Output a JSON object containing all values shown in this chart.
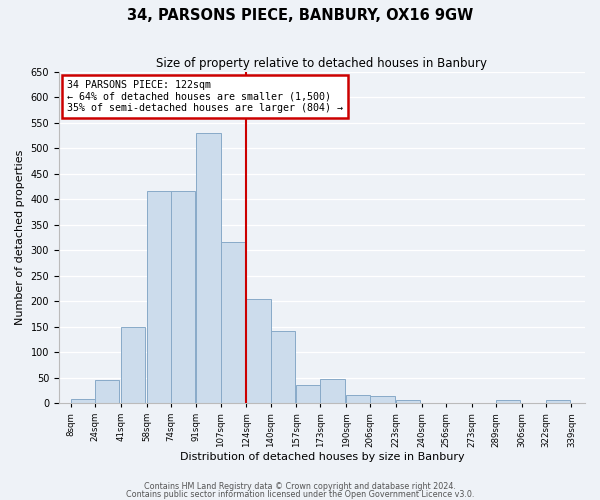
{
  "title": "34, PARSONS PIECE, BANBURY, OX16 9GW",
  "subtitle": "Size of property relative to detached houses in Banbury",
  "xlabel": "Distribution of detached houses by size in Banbury",
  "ylabel": "Number of detached properties",
  "bin_labels": [
    "8sqm",
    "24sqm",
    "41sqm",
    "58sqm",
    "74sqm",
    "91sqm",
    "107sqm",
    "124sqm",
    "140sqm",
    "157sqm",
    "173sqm",
    "190sqm",
    "206sqm",
    "223sqm",
    "240sqm",
    "256sqm",
    "273sqm",
    "289sqm",
    "306sqm",
    "322sqm",
    "339sqm"
  ],
  "bar_heights": [
    8,
    45,
    150,
    415,
    415,
    530,
    315,
    205,
    142,
    35,
    48,
    15,
    13,
    5,
    1,
    0,
    0,
    6,
    1,
    6
  ],
  "bar_color": "#ccdcec",
  "bar_edge_color": "#88aac8",
  "annotation_title": "34 PARSONS PIECE: 122sqm",
  "annotation_line1": "← 64% of detached houses are smaller (1,500)",
  "annotation_line2": "35% of semi-detached houses are larger (804) →",
  "annotation_box_facecolor": "#ffffff",
  "annotation_box_edgecolor": "#cc0000",
  "vline_color": "#cc0000",
  "ylim": [
    0,
    650
  ],
  "yticks": [
    0,
    50,
    100,
    150,
    200,
    250,
    300,
    350,
    400,
    450,
    500,
    550,
    600,
    650
  ],
  "footer1": "Contains HM Land Registry data © Crown copyright and database right 2024.",
  "footer2": "Contains public sector information licensed under the Open Government Licence v3.0.",
  "bg_color": "#eef2f7",
  "grid_color": "#ffffff",
  "bin_width": 16,
  "bin_starts": [
    8,
    24,
    41,
    58,
    74,
    91,
    107,
    124,
    140,
    157,
    173,
    190,
    206,
    223,
    240,
    256,
    273,
    289,
    306,
    322
  ],
  "vline_x": 124
}
